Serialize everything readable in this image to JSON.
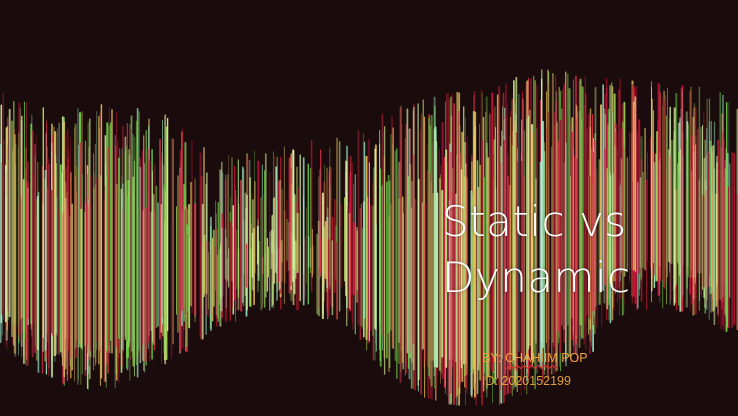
{
  "slide": {
    "title_line1": "Static vs",
    "title_line2": "Dynamic",
    "by_prefix": "BY: ",
    "author_first": "CHAHIIM",
    "author_last": " POP",
    "id_line": "ID: 2020152199"
  },
  "colors": {
    "background": "#1a0c0c",
    "title": "#ffffff",
    "subtitle": "#f0a43e",
    "streak_palette": [
      "#c8143c",
      "#e0304a",
      "#9e1a2a",
      "#6fd04a",
      "#a8e060",
      "#d8f0a0",
      "#9ef0d0",
      "#e8c060"
    ]
  },
  "background_art": "streaks-of-light"
}
